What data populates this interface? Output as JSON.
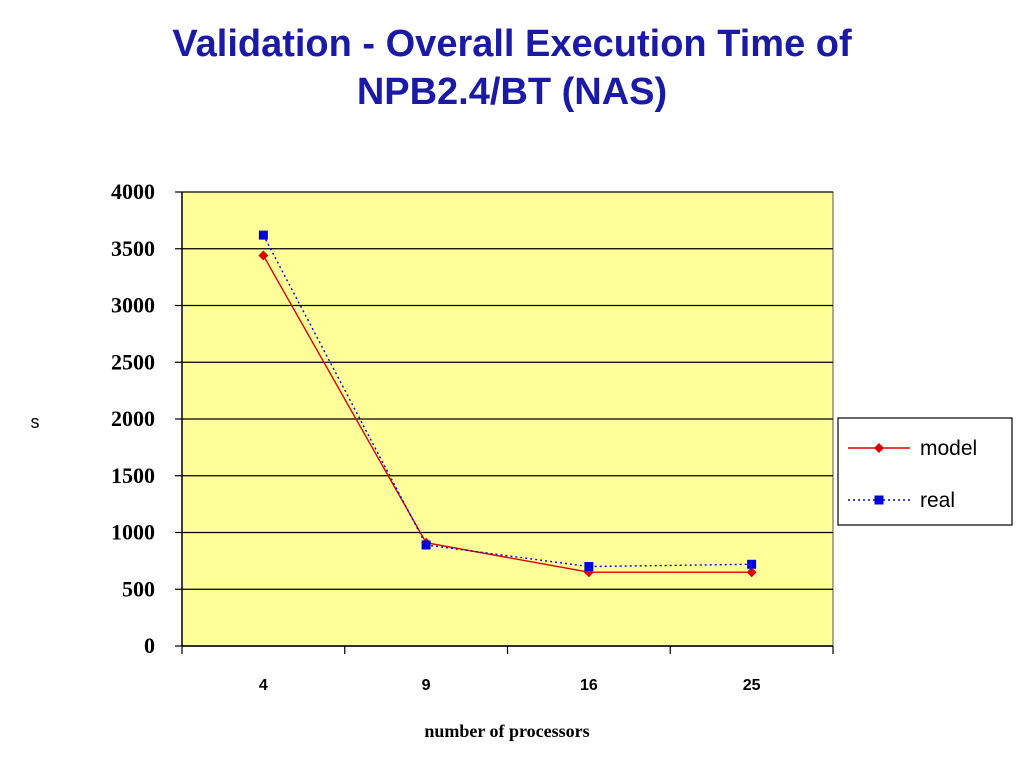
{
  "slide": {
    "title_line1": "Validation - Overall Execution Time of",
    "title_line2": "NPB2.4/BT (NAS)"
  },
  "colors": {
    "title": "#1a1aa6",
    "plot_background": "#ffff99",
    "model": "#dd0000",
    "real": "#0000dd",
    "gridline": "#000000"
  },
  "chart_data": {
    "type": "line",
    "title": "",
    "xlabel": "number of processors",
    "ylabel": "s",
    "categories": [
      "4",
      "9",
      "16",
      "25"
    ],
    "ylim": [
      0,
      4000
    ],
    "yticks": [
      "0",
      "500",
      "1000",
      "1500",
      "2000",
      "2500",
      "3000",
      "3500",
      "4000"
    ],
    "grid": true,
    "legend": "right",
    "series": [
      {
        "name": "model",
        "values": [
          3440,
          910,
          650,
          650
        ],
        "marker": "diamond",
        "line": "solid"
      },
      {
        "name": "real",
        "values": [
          3620,
          890,
          700,
          720
        ],
        "marker": "square",
        "line": "dotted"
      }
    ]
  }
}
